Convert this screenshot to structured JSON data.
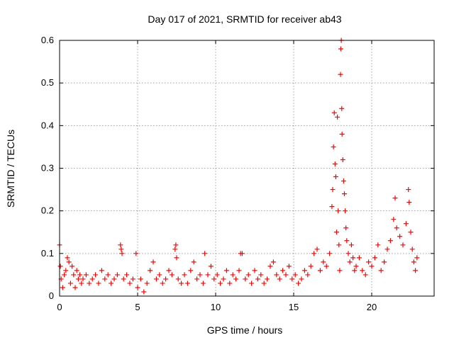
{
  "chart_data": {
    "type": "scatter",
    "title": "Day 017 of 2021, SRMTID for receiver ab43",
    "xlabel": "GPS time / hours",
    "ylabel": "SRMTID / TECUs",
    "xlim": [
      0,
      24
    ],
    "ylim": [
      0,
      0.6
    ],
    "xticks": [
      0,
      5,
      10,
      15,
      20
    ],
    "xtick_labels": [
      "0",
      "5",
      "10",
      "15",
      "20"
    ],
    "yticks": [
      0,
      0.1,
      0.2,
      0.3,
      0.4,
      0.5,
      0.6
    ],
    "ytick_labels": [
      "0",
      "0.1",
      "0.2",
      "0.3",
      "0.4",
      "0.5",
      "0.6"
    ],
    "grid": true,
    "marker": "+",
    "marker_color": "#ff0000",
    "series": [
      {
        "name": "SRMTID",
        "points": [
          [
            0.0,
            0.12
          ],
          [
            0.05,
            0.07
          ],
          [
            0.1,
            0.04
          ],
          [
            0.2,
            0.02
          ],
          [
            0.3,
            0.05
          ],
          [
            0.4,
            0.06
          ],
          [
            0.5,
            0.09
          ],
          [
            0.6,
            0.08
          ],
          [
            0.7,
            0.03
          ],
          [
            0.8,
            0.07
          ],
          [
            0.9,
            0.05
          ],
          [
            1.0,
            0.02
          ],
          [
            1.1,
            0.06
          ],
          [
            1.2,
            0.04
          ],
          [
            1.3,
            0.05
          ],
          [
            1.4,
            0.03
          ],
          [
            1.5,
            0.04
          ],
          [
            1.7,
            0.05
          ],
          [
            1.9,
            0.03
          ],
          [
            2.1,
            0.04
          ],
          [
            2.3,
            0.05
          ],
          [
            2.5,
            0.03
          ],
          [
            2.7,
            0.06
          ],
          [
            2.9,
            0.04
          ],
          [
            3.1,
            0.05
          ],
          [
            3.3,
            0.03
          ],
          [
            3.5,
            0.04
          ],
          [
            3.7,
            0.05
          ],
          [
            3.9,
            0.12
          ],
          [
            3.95,
            0.11
          ],
          [
            4.0,
            0.1
          ],
          [
            4.1,
            0.04
          ],
          [
            4.3,
            0.05
          ],
          [
            4.5,
            0.03
          ],
          [
            4.7,
            0.04
          ],
          [
            4.9,
            0.1
          ],
          [
            5.0,
            0.02
          ],
          [
            5.2,
            0.04
          ],
          [
            5.4,
            0.01
          ],
          [
            5.6,
            0.03
          ],
          [
            5.8,
            0.06
          ],
          [
            6.0,
            0.08
          ],
          [
            6.2,
            0.04
          ],
          [
            6.4,
            0.05
          ],
          [
            6.6,
            0.03
          ],
          [
            6.8,
            0.04
          ],
          [
            7.0,
            0.06
          ],
          [
            7.2,
            0.05
          ],
          [
            7.4,
            0.11
          ],
          [
            7.45,
            0.12
          ],
          [
            7.5,
            0.09
          ],
          [
            7.6,
            0.04
          ],
          [
            7.8,
            0.03
          ],
          [
            8.0,
            0.05
          ],
          [
            8.2,
            0.03
          ],
          [
            8.4,
            0.06
          ],
          [
            8.6,
            0.08
          ],
          [
            8.8,
            0.04
          ],
          [
            9.0,
            0.05
          ],
          [
            9.2,
            0.03
          ],
          [
            9.3,
            0.1
          ],
          [
            9.5,
            0.05
          ],
          [
            9.7,
            0.07
          ],
          [
            9.9,
            0.04
          ],
          [
            10.1,
            0.05
          ],
          [
            10.3,
            0.03
          ],
          [
            10.5,
            0.04
          ],
          [
            10.7,
            0.06
          ],
          [
            10.9,
            0.03
          ],
          [
            11.1,
            0.05
          ],
          [
            11.3,
            0.04
          ],
          [
            11.5,
            0.06
          ],
          [
            11.6,
            0.1
          ],
          [
            11.7,
            0.1
          ],
          [
            11.9,
            0.04
          ],
          [
            12.1,
            0.05
          ],
          [
            12.3,
            0.03
          ],
          [
            12.5,
            0.06
          ],
          [
            12.7,
            0.04
          ],
          [
            12.9,
            0.05
          ],
          [
            13.1,
            0.03
          ],
          [
            13.3,
            0.04
          ],
          [
            13.5,
            0.07
          ],
          [
            13.7,
            0.08
          ],
          [
            13.9,
            0.05
          ],
          [
            14.1,
            0.04
          ],
          [
            14.3,
            0.06
          ],
          [
            14.5,
            0.05
          ],
          [
            14.7,
            0.07
          ],
          [
            14.9,
            0.04
          ],
          [
            15.1,
            0.05
          ],
          [
            15.3,
            0.03
          ],
          [
            15.5,
            0.04
          ],
          [
            15.7,
            0.06
          ],
          [
            15.9,
            0.05
          ],
          [
            16.1,
            0.07
          ],
          [
            16.3,
            0.1
          ],
          [
            16.5,
            0.11
          ],
          [
            16.7,
            0.06
          ],
          [
            16.9,
            0.08
          ],
          [
            17.1,
            0.07
          ],
          [
            17.3,
            0.1
          ],
          [
            17.45,
            0.21
          ],
          [
            17.5,
            0.25
          ],
          [
            17.55,
            0.35
          ],
          [
            17.6,
            0.43
          ],
          [
            17.65,
            0.31
          ],
          [
            17.7,
            0.28
          ],
          [
            17.75,
            0.15
          ],
          [
            17.8,
            0.42
          ],
          [
            17.85,
            0.2
          ],
          [
            17.9,
            0.12
          ],
          [
            17.95,
            0.06
          ],
          [
            18.0,
            0.52
          ],
          [
            18.02,
            0.58
          ],
          [
            18.05,
            0.6
          ],
          [
            18.08,
            0.44
          ],
          [
            18.1,
            0.38
          ],
          [
            18.15,
            0.32
          ],
          [
            18.2,
            0.27
          ],
          [
            18.25,
            0.24
          ],
          [
            18.3,
            0.2
          ],
          [
            18.35,
            0.16
          ],
          [
            18.4,
            0.13
          ],
          [
            18.5,
            0.1
          ],
          [
            18.6,
            0.08
          ],
          [
            18.7,
            0.12
          ],
          [
            18.8,
            0.09
          ],
          [
            18.9,
            0.06
          ],
          [
            19.0,
            0.07
          ],
          [
            19.2,
            0.09
          ],
          [
            19.4,
            0.06
          ],
          [
            19.6,
            0.05
          ],
          [
            19.8,
            0.08
          ],
          [
            20.0,
            0.07
          ],
          [
            20.2,
            0.09
          ],
          [
            20.4,
            0.12
          ],
          [
            20.6,
            0.06
          ],
          [
            20.8,
            0.08
          ],
          [
            21.0,
            0.11
          ],
          [
            21.2,
            0.13
          ],
          [
            21.4,
            0.18
          ],
          [
            21.5,
            0.23
          ],
          [
            21.6,
            0.16
          ],
          [
            21.8,
            0.14
          ],
          [
            22.0,
            0.12
          ],
          [
            22.2,
            0.17
          ],
          [
            22.35,
            0.25
          ],
          [
            22.4,
            0.22
          ],
          [
            22.5,
            0.15
          ],
          [
            22.6,
            0.11
          ],
          [
            22.7,
            0.08
          ],
          [
            22.8,
            0.06
          ],
          [
            22.9,
            0.09
          ]
        ]
      }
    ]
  }
}
